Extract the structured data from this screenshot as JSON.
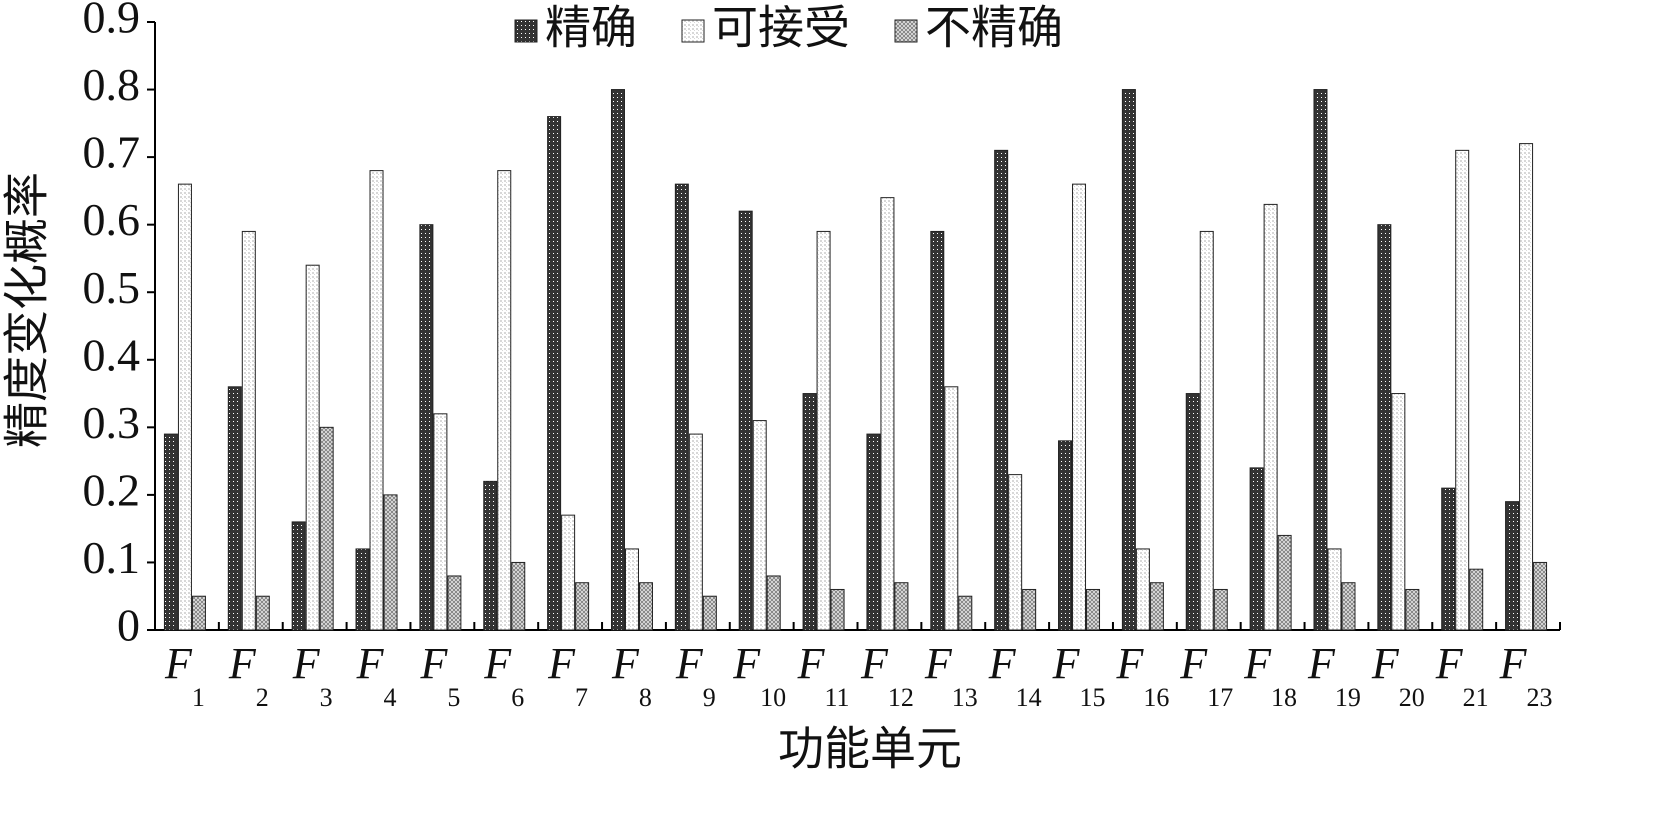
{
  "chart_data": {
    "type": "bar",
    "y_label": "精度变化概率",
    "x_label": "功能单元",
    "categories": [
      "F1",
      "F2",
      "F3",
      "F4",
      "F5",
      "F6",
      "F7",
      "F8",
      "F9",
      "F10",
      "F11",
      "F12",
      "F13",
      "F14",
      "F15",
      "F16",
      "F17",
      "F18",
      "F19",
      "F20",
      "F21",
      "F23"
    ],
    "series": [
      {
        "name": "精确",
        "color": "#333333",
        "values": [
          0.29,
          0.36,
          0.16,
          0.12,
          0.6,
          0.22,
          0.76,
          0.8,
          0.66,
          0.62,
          0.35,
          0.29,
          0.59,
          0.71,
          0.28,
          0.8,
          0.35,
          0.24,
          0.8,
          0.6,
          0.21,
          0.19
        ]
      },
      {
        "name": "可接受",
        "color": "#d8d8d8",
        "values": [
          0.66,
          0.59,
          0.54,
          0.68,
          0.32,
          0.68,
          0.17,
          0.12,
          0.29,
          0.31,
          0.59,
          0.64,
          0.36,
          0.23,
          0.66,
          0.12,
          0.59,
          0.63,
          0.12,
          0.35,
          0.71,
          0.72
        ]
      },
      {
        "name": "不精确",
        "color": "#888888",
        "values": [
          0.05,
          0.05,
          0.3,
          0.2,
          0.08,
          0.1,
          0.07,
          0.07,
          0.05,
          0.08,
          0.06,
          0.07,
          0.05,
          0.06,
          0.06,
          0.07,
          0.06,
          0.14,
          0.07,
          0.06,
          0.09,
          0.1
        ]
      }
    ],
    "ylim": [
      0,
      0.9
    ],
    "yticks": [
      0,
      0.1,
      0.2,
      0.3,
      0.4,
      0.5,
      0.6,
      0.7,
      0.8,
      0.9
    ],
    "legend": "top"
  }
}
